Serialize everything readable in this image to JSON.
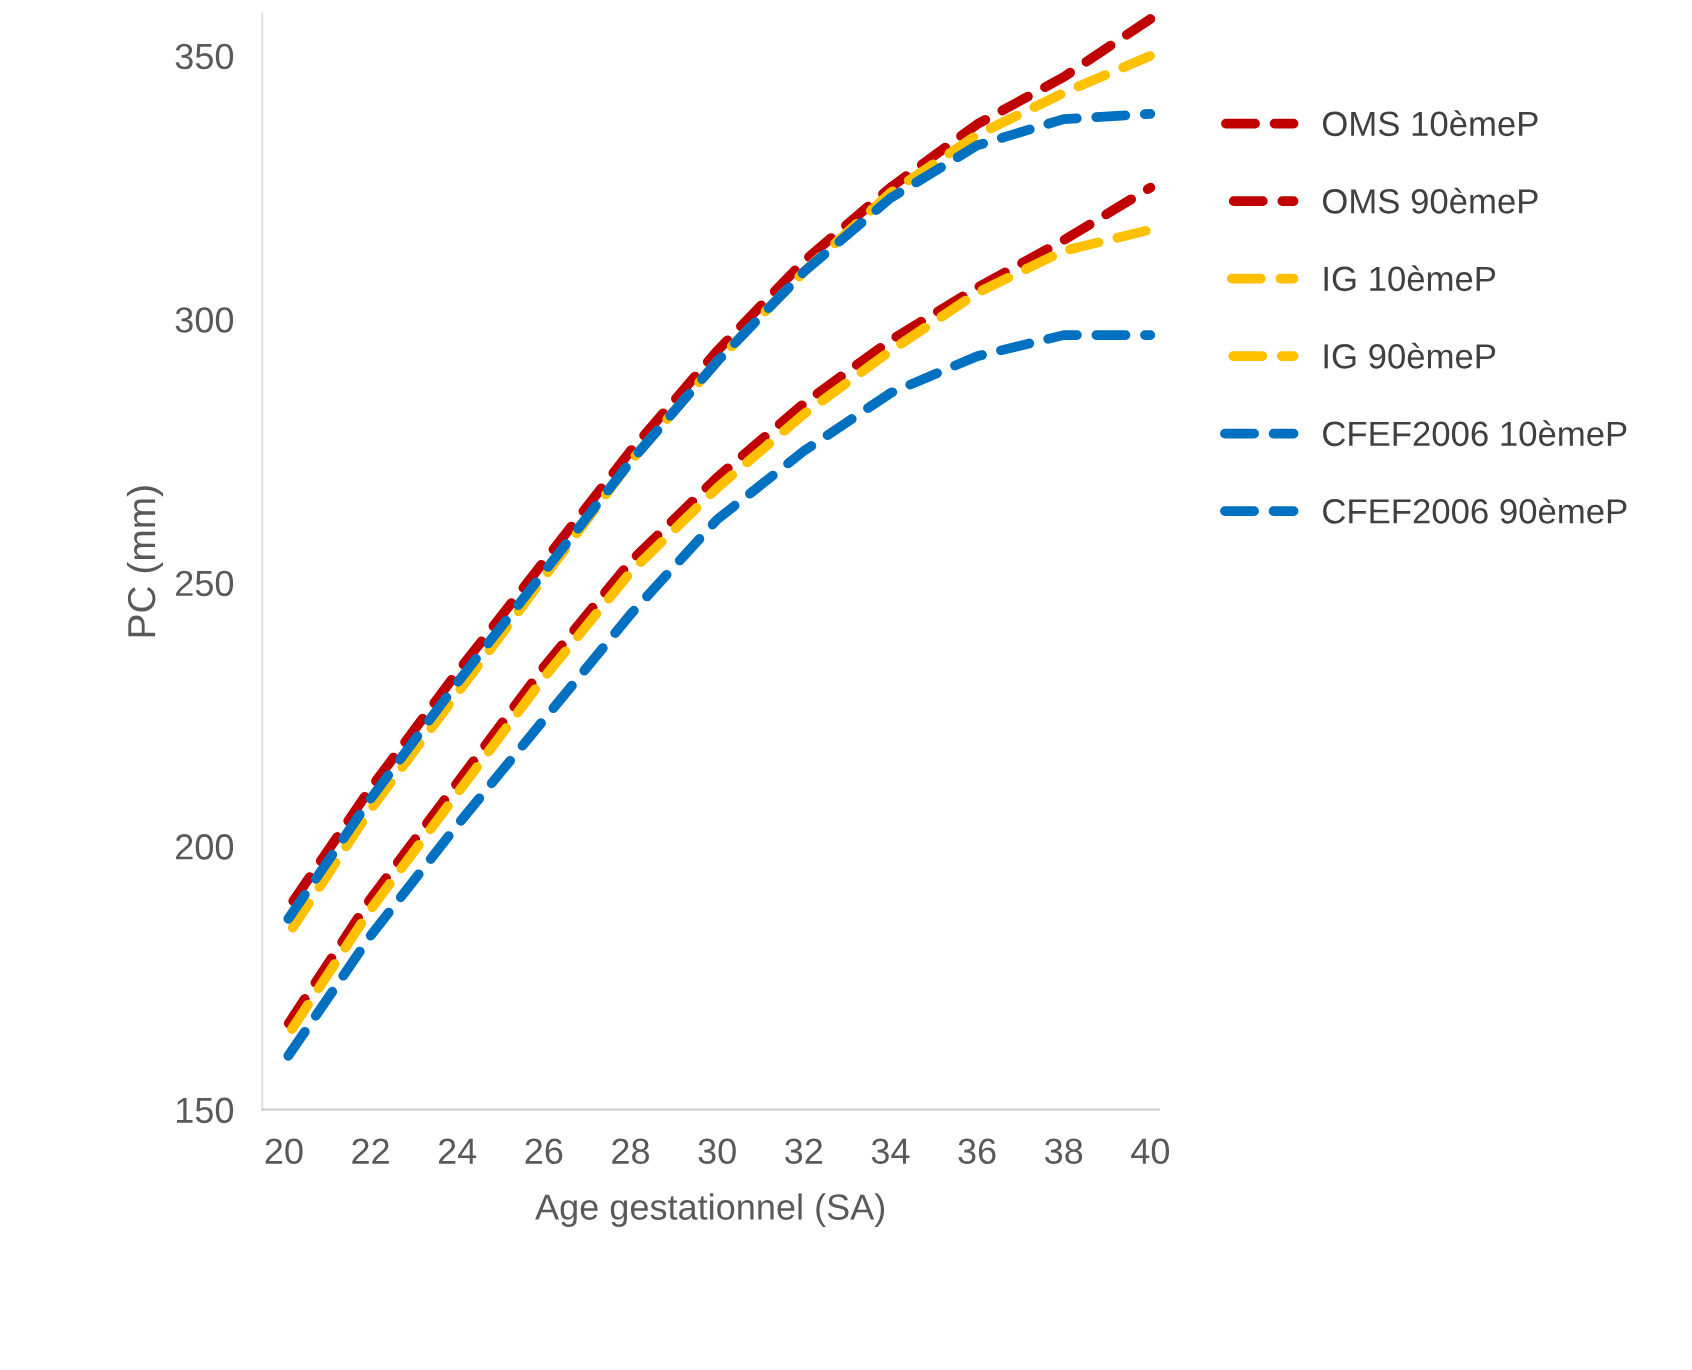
{
  "chart_data": {
    "type": "line",
    "xlabel": "Age gestationnel (SA)",
    "ylabel": "PC (mm)",
    "x": [
      20,
      22,
      24,
      26,
      28,
      30,
      32,
      34,
      36,
      38,
      40
    ],
    "xlim": [
      19.5,
      40.2
    ],
    "xticks": [
      20,
      22,
      24,
      26,
      28,
      30,
      32,
      34,
      36,
      38,
      40
    ],
    "ylim": [
      150,
      358
    ],
    "yticks": [
      150,
      200,
      250,
      300,
      350
    ],
    "grid": false,
    "legend": "right",
    "line_style": "dashed",
    "marker": "none",
    "series": [
      {
        "name": "OMS 10èmeP",
        "color": "#c00000",
        "values": [
          165,
          190,
          212,
          234,
          254,
          270,
          284,
          296,
          306,
          315,
          325
        ]
      },
      {
        "name": "OMS 90èmeP",
        "color": "#c00000",
        "values": [
          187,
          211,
          233,
          254,
          275,
          294,
          311,
          325,
          337,
          346,
          357
        ]
      },
      {
        "name": "IG 10èmeP",
        "color": "#ffc000",
        "values": [
          163,
          188,
          210,
          232,
          252,
          268,
          282,
          294,
          305,
          313,
          317
        ]
      },
      {
        "name": "IG 90èmeP",
        "color": "#ffc000",
        "values": [
          182,
          207,
          229,
          251,
          273,
          292,
          309,
          324,
          335,
          343,
          350
        ]
      },
      {
        "name": "CFEF2006 10èmeP",
        "color": "#0070c0",
        "values": [
          159,
          183,
          204,
          224,
          244,
          262,
          275,
          286,
          293,
          297,
          297
        ]
      },
      {
        "name": "CFEF2006 90èmeP",
        "color": "#0070c0",
        "values": [
          185,
          209,
          231,
          252,
          273,
          292,
          309,
          323,
          333,
          338,
          339
        ]
      }
    ]
  }
}
